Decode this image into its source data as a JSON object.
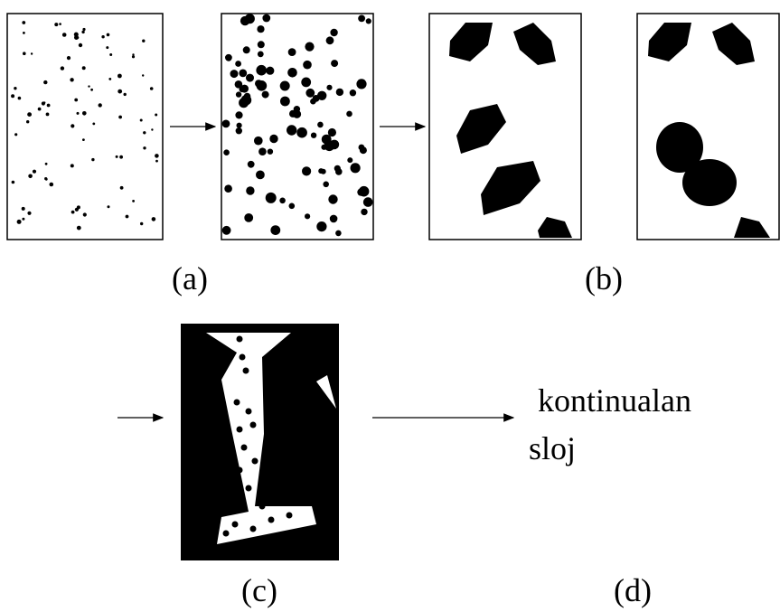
{
  "labels": {
    "a": "(a)",
    "b": "(b)",
    "c": "(c)",
    "d": "(d)"
  },
  "result": {
    "line1": "kontinualan",
    "line2": "sloj"
  }
}
